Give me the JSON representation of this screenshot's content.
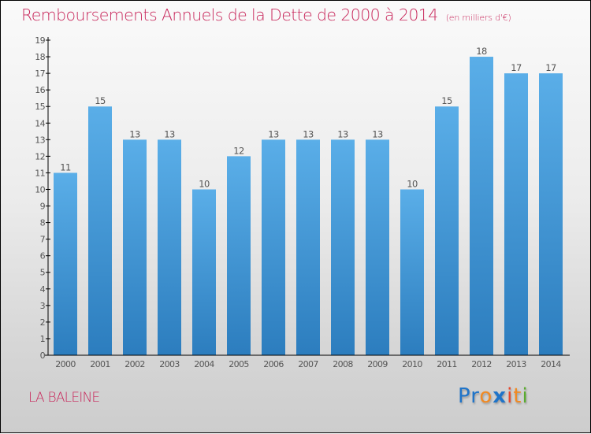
{
  "header": {
    "title": "Remboursements Annuels de la Dette de 2000 à 2014",
    "subtitle": "(en milliers d'€)"
  },
  "footer": {
    "commune": "LA BALEINE",
    "logo_letters": [
      {
        "char": "P",
        "color": "#1f74c9"
      },
      {
        "char": "r",
        "color": "#1f74c9"
      },
      {
        "char": "o",
        "color": "#f08a24"
      },
      {
        "char": "x",
        "color": "#1f74c9"
      },
      {
        "char": "i",
        "color": "#e8452a"
      },
      {
        "char": "t",
        "color": "#f08a24"
      },
      {
        "char": "i",
        "color": "#5aab2e"
      }
    ]
  },
  "colors": {
    "title": "#c8275b",
    "bar_top": "#5aaee8",
    "bar_bottom": "#2c7dbe",
    "axis": "#000000",
    "label": "#555555"
  },
  "chart_data": {
    "type": "bar",
    "title": "Remboursements Annuels de la Dette de 2000 à 2014",
    "subtitle": "(en milliers d'€)",
    "xlabel": "",
    "ylabel": "",
    "categories": [
      "2000",
      "2001",
      "2002",
      "2003",
      "2004",
      "2005",
      "2006",
      "2007",
      "2008",
      "2009",
      "2010",
      "2011",
      "2012",
      "2013",
      "2014"
    ],
    "values": [
      11,
      15,
      13,
      13,
      10,
      12,
      13,
      13,
      13,
      13,
      10,
      15,
      18,
      17,
      17
    ],
    "ylim": [
      0,
      19
    ],
    "yticks": [
      0,
      1,
      2,
      3,
      4,
      5,
      6,
      7,
      8,
      9,
      10,
      11,
      12,
      13,
      14,
      15,
      16,
      17,
      18,
      19
    ],
    "grid": false,
    "legend": "none",
    "data_labels": true
  }
}
